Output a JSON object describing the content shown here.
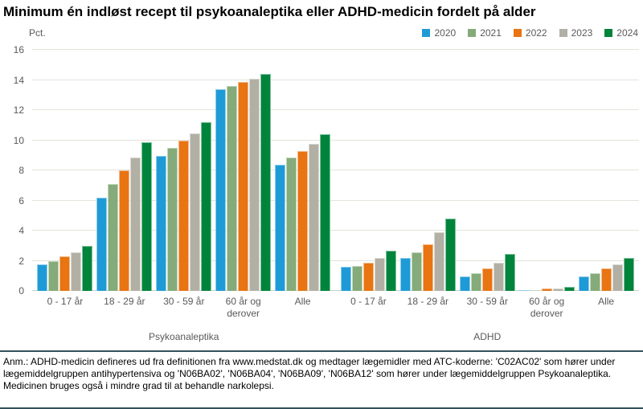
{
  "footnote": "Anm.: ADHD-medicin defineres ud fra definitionen fra www.medstat.dk og medtager lægemidler med ATC-koderne: 'C02AC02' som hører under lægemiddelgruppen antihypertensiva og 'N06BA02', 'N06BA04', 'N06BA09', 'N06BA12' som hører under lægemiddelgruppen Psykoanaleptika. Medicinen bruges også i mindre grad til at behandle narkolepsi.",
  "chart_data": {
    "type": "bar",
    "title": "Minimum én indløst recept til psykoanaleptika eller ADHD-medicin fordelt på alder",
    "ylabel": "Pct.",
    "xlabel": "",
    "ylim": [
      0,
      16
    ],
    "ytick_step": 2,
    "grid": true,
    "legend_position": "top-right",
    "sections": [
      {
        "label": "Psykoanaleptika",
        "categories": [
          "0 - 17 år",
          "18 - 29 år",
          "30 - 59 år",
          "60 år og derover",
          "Alle"
        ]
      },
      {
        "label": "ADHD",
        "categories": [
          "0 - 17 år",
          "18 - 29 år",
          "30 - 59 år",
          "60 år og derover",
          "Alle"
        ]
      }
    ],
    "series": [
      {
        "name": "2020",
        "color": "#1e9bd7",
        "values": [
          1.8,
          6.2,
          9.0,
          13.4,
          8.4,
          1.6,
          2.2,
          1.0,
          0.1,
          1.0
        ]
      },
      {
        "name": "2021",
        "color": "#84ab79",
        "values": [
          2.0,
          7.1,
          9.5,
          13.6,
          8.9,
          1.7,
          2.6,
          1.2,
          0.1,
          1.2
        ]
      },
      {
        "name": "2022",
        "color": "#e87412",
        "values": [
          2.3,
          8.0,
          10.0,
          13.9,
          9.3,
          1.9,
          3.1,
          1.5,
          0.2,
          1.5
        ]
      },
      {
        "name": "2023",
        "color": "#b2b0a5",
        "values": [
          2.6,
          8.9,
          10.5,
          14.1,
          9.8,
          2.2,
          3.9,
          1.9,
          0.2,
          1.8
        ]
      },
      {
        "name": "2024",
        "color": "#00843c",
        "values": [
          3.0,
          9.9,
          11.2,
          14.4,
          10.4,
          2.7,
          4.8,
          2.5,
          0.3,
          2.2
        ]
      }
    ]
  }
}
